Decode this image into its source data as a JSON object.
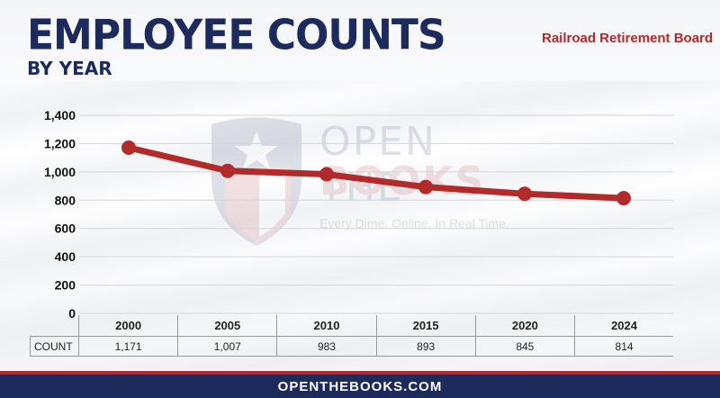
{
  "header": {
    "title": "EMPLOYEE COUNTS",
    "subtitle": "BY YEAR",
    "source": "Railroad Retirement Board"
  },
  "watermark": {
    "line1": "OPEN THE",
    "line2": "BOOKS",
    "tagline": "Every Dime. Online. In Real Time."
  },
  "footer": {
    "text": "OPENTHEBOOKS.COM"
  },
  "table": {
    "row_label": "COUNT",
    "years": [
      "2000",
      "2005",
      "2010",
      "2015",
      "2020",
      "2024"
    ],
    "counts": [
      "1,171",
      "1,007",
      "983",
      "893",
      "845",
      "814"
    ]
  },
  "colors": {
    "line": "#b22a2a",
    "title": "#1c2a5c",
    "grid": "#d6d6d6"
  },
  "chart_data": {
    "type": "line",
    "categories": [
      "2000",
      "2005",
      "2010",
      "2015",
      "2020",
      "2024"
    ],
    "series": [
      {
        "values": [
          1171,
          1007,
          983,
          893,
          845,
          814
        ]
      }
    ],
    "ylim": [
      0,
      1400
    ],
    "yticks": [
      0,
      200,
      400,
      600,
      800,
      1000,
      1200,
      1400
    ],
    "ytick_labels": [
      "0",
      "200",
      "400",
      "600",
      "800",
      "1,000",
      "1,200",
      "1,400"
    ],
    "grid": true,
    "xlabel": "",
    "ylabel": ""
  }
}
